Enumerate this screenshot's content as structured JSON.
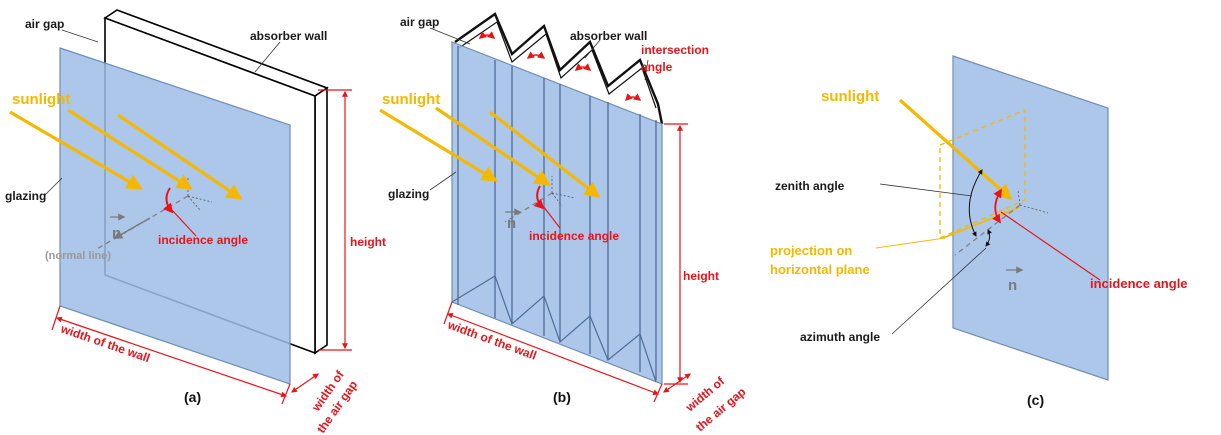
{
  "panel_a": {
    "air_gap": "air gap",
    "absorber_wall": "absorber wall",
    "sunlight": "sunlight",
    "glazing": "glazing",
    "normal_vector": "n",
    "incidence_angle": "incidence angle",
    "normal_line": "(normal line)",
    "height": "height",
    "width_wall": "width of the wall",
    "width_gap_1": "width of",
    "width_gap_2": "the air gap",
    "caption": "(a)"
  },
  "panel_b": {
    "air_gap": "air gap",
    "absorber_wall": "absorber wall",
    "intersection_1": "intersection",
    "intersection_2": "angle",
    "sunlight": "sunlight",
    "glazing": "glazing",
    "normal_vector": "n",
    "incidence_angle": "incidence angle",
    "height": "height",
    "width_wall": "width of the wall",
    "width_gap_1": "width of",
    "width_gap_2": "the air gap",
    "caption": "(b)"
  },
  "panel_c": {
    "sunlight": "sunlight",
    "zenith_angle": "zenith angle",
    "projection_1": "projection on",
    "projection_2": "horizontal plane",
    "normal_vector": "n",
    "incidence_angle": "incidence angle",
    "azimuth_angle": "azimuth angle",
    "caption": "(c)"
  },
  "colors": {
    "glazing": "#9dbde6",
    "sunlight": "#f5b800",
    "dimension_red": "#e8141b"
  }
}
